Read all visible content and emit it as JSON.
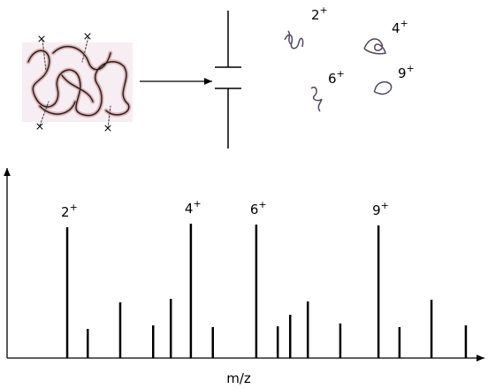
{
  "chart_data": {
    "type": "bar",
    "x": [
      12.6,
      16.9,
      23.7,
      30.6,
      34.3,
      38.5,
      43.1,
      52.2,
      56.7,
      59.3,
      63.0,
      69.8,
      77.8,
      82.2,
      88.9,
      96.1
    ],
    "values": [
      70.5,
      15.7,
      30.0,
      17.6,
      31.9,
      72.4,
      16.7,
      71.9,
      17.1,
      23.3,
      30.5,
      18.6,
      71.4,
      16.7,
      31.4,
      17.6
    ],
    "peak_labels": [
      {
        "charge": "2",
        "sign": "+"
      },
      null,
      null,
      null,
      null,
      {
        "charge": "4",
        "sign": "+"
      },
      null,
      {
        "charge": "6",
        "sign": "+"
      },
      null,
      null,
      null,
      null,
      {
        "charge": "9",
        "sign": "+"
      },
      null,
      null,
      null
    ],
    "xlim": [
      0,
      100
    ],
    "ylim": [
      0,
      100
    ],
    "color": "#000000",
    "x_label": "m/z"
  },
  "ions": [
    {
      "charge": "2",
      "sign": "+"
    },
    {
      "charge": "4",
      "sign": "+"
    },
    {
      "charge": "6",
      "sign": "+"
    },
    {
      "charge": "9",
      "sign": "+"
    }
  ]
}
